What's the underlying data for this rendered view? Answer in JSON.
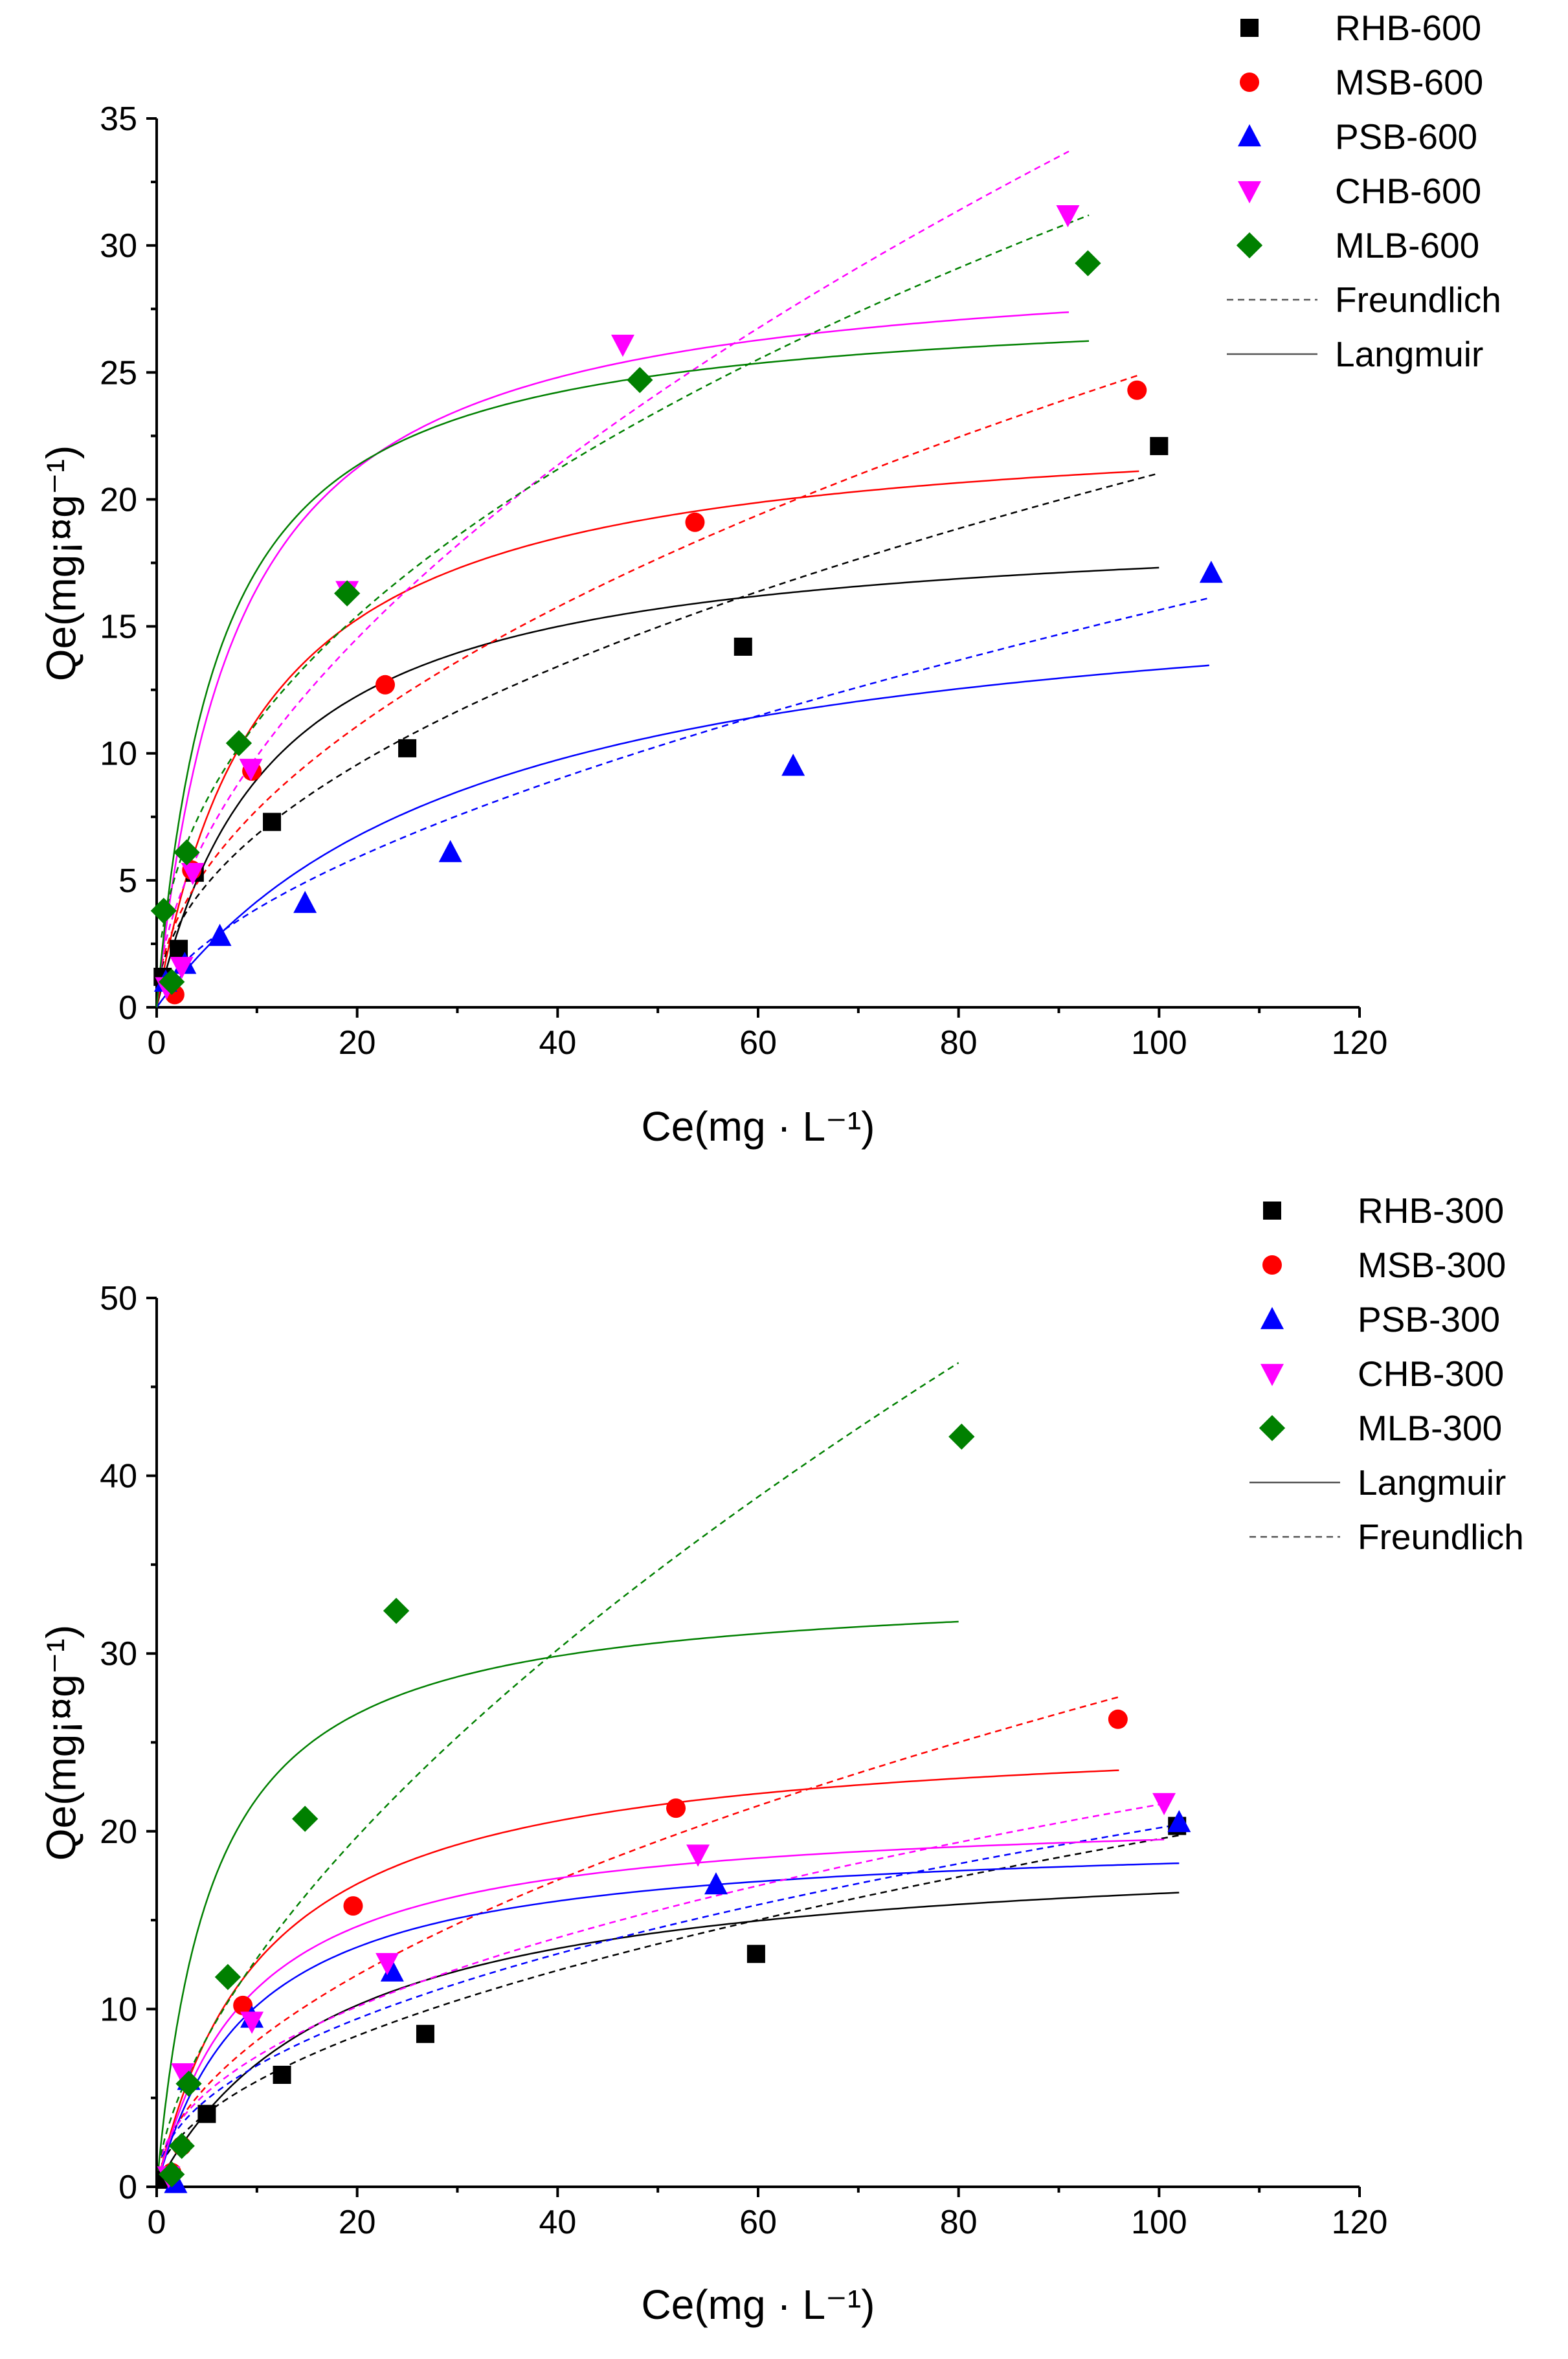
{
  "chart_data": [
    {
      "type": "scatter",
      "title": "",
      "xlabel": "Ce(mg · L⁻¹)",
      "ylabel": "Qe(mg¡¤g⁻¹)",
      "xlim": [
        0,
        120
      ],
      "ylim": [
        0,
        35
      ],
      "xticks": [
        "0",
        "20",
        "40",
        "60",
        "80",
        "100",
        "120"
      ],
      "yticks": [
        "0",
        "5",
        "10",
        "15",
        "20",
        "25",
        "30",
        "35"
      ],
      "legend_position": "top-right",
      "legend": [
        "RHB-600",
        "MSB-600",
        "PSB-600",
        "CHB-600",
        "MLB-600",
        "Freundlich",
        "Langmuir"
      ],
      "series": [
        {
          "name": "RHB-600",
          "marker": "square",
          "color": "#000000",
          "x": [
            0.6,
            2.2,
            3.8,
            11.5,
            25.0,
            58.5,
            100.0
          ],
          "y": [
            1.2,
            2.3,
            5.3,
            7.3,
            10.2,
            14.2,
            22.1
          ],
          "langmuir": {
            "qm": 19.3,
            "kl": 0.087,
            "xmax": 100
          },
          "freundlich": {
            "kf": 2.2,
            "n": 2.04,
            "xmax": 100
          }
        },
        {
          "name": "MSB-600",
          "marker": "circle",
          "color": "#ff0000",
          "x": [
            1.8,
            3.5,
            9.5,
            22.8,
            53.7,
            97.8
          ],
          "y": [
            0.5,
            5.4,
            9.3,
            12.7,
            19.1,
            24.3
          ],
          "langmuir": {
            "qm": 23.4,
            "kl": 0.094,
            "xmax": 98
          },
          "freundlich": {
            "kf": 2.4,
            "n": 1.96,
            "xmax": 98
          }
        },
        {
          "name": "PSB-600",
          "marker": "triangle-up",
          "color": "#0000ff",
          "x": [
            0.9,
            2.8,
            6.3,
            14.8,
            29.3,
            63.5,
            105.2
          ],
          "y": [
            1.0,
            1.7,
            2.8,
            4.1,
            6.1,
            9.5,
            17.1
          ],
          "langmuir": {
            "qm": 17.6,
            "kl": 0.031,
            "xmax": 105
          },
          "freundlich": {
            "kf": 0.96,
            "n": 1.65,
            "xmax": 105
          }
        },
        {
          "name": "CHB-600",
          "marker": "triangle-down",
          "color": "#ff00ff",
          "x": [
            1.0,
            2.5,
            3.6,
            9.4,
            19.0,
            46.5,
            90.9
          ],
          "y": [
            0.8,
            1.6,
            5.3,
            9.4,
            16.4,
            26.1,
            31.2
          ],
          "langmuir": {
            "qm": 29.8,
            "kl": 0.124,
            "xmax": 91
          },
          "freundlich": {
            "kf": 2.75,
            "n": 1.8,
            "xmax": 91
          }
        },
        {
          "name": "MLB-600",
          "marker": "diamond",
          "color": "#008000",
          "x": [
            0.7,
            1.5,
            3.0,
            8.2,
            19.0,
            48.2,
            92.9
          ],
          "y": [
            3.8,
            1.0,
            6.1,
            10.4,
            16.3,
            24.7,
            29.3
          ],
          "langmuir": {
            "qm": 28.0,
            "kl": 0.16,
            "xmax": 93
          },
          "freundlich": {
            "kf": 3.9,
            "n": 2.18,
            "xmax": 93
          }
        }
      ]
    },
    {
      "type": "scatter",
      "title": "",
      "xlabel": "Ce(mg · L⁻¹)",
      "ylabel": "Qe(mg¡¤g⁻¹)",
      "xlim": [
        0,
        120
      ],
      "ylim": [
        0,
        50
      ],
      "xticks": [
        "0",
        "20",
        "40",
        "60",
        "80",
        "100",
        "120"
      ],
      "yticks": [
        "0",
        "10",
        "20",
        "30",
        "40",
        "50"
      ],
      "legend_position": "top-right",
      "legend": [
        "RHB-300",
        "MSB-300",
        "PSB-300",
        "CHB-300",
        "MLB-300",
        "Langmuir",
        "Freundlich"
      ],
      "series": [
        {
          "name": "RHB-300",
          "marker": "square",
          "color": "#000000",
          "x": [
            0.8,
            5.0,
            12.5,
            26.8,
            59.8,
            101.8
          ],
          "y": [
            0.4,
            4.1,
            6.3,
            8.6,
            13.1,
            20.3
          ],
          "langmuir": {
            "qm": 19.5,
            "kl": 0.055,
            "xmax": 102
          },
          "freundlich": {
            "kf": 1.8,
            "n": 1.93,
            "xmax": 102
          }
        },
        {
          "name": "MSB-300",
          "marker": "circle",
          "color": "#ff0000",
          "x": [
            1.5,
            2.5,
            8.6,
            19.6,
            51.8,
            95.9
          ],
          "y": [
            0.8,
            2.3,
            10.2,
            15.8,
            21.3,
            26.3
          ],
          "langmuir": {
            "qm": 26.0,
            "kl": 0.095,
            "xmax": 96
          },
          "freundlich": {
            "kf": 2.4,
            "n": 1.87,
            "xmax": 96
          }
        },
        {
          "name": "PSB-300",
          "marker": "triangle-up",
          "color": "#0000ff",
          "x": [
            1.9,
            3.2,
            9.5,
            23.5,
            55.8,
            102.0
          ],
          "y": [
            0.2,
            6.0,
            9.5,
            12.1,
            17.0,
            20.5
          ],
          "langmuir": {
            "qm": 19.9,
            "kl": 0.105,
            "xmax": 102
          },
          "freundlich": {
            "kf": 2.3,
            "n": 2.12,
            "xmax": 102
          }
        },
        {
          "name": "CHB-300",
          "marker": "triangle-down",
          "color": "#ff00ff",
          "x": [
            1.2,
            2.6,
            9.5,
            23.0,
            54.0,
            100.5
          ],
          "y": [
            0.6,
            6.4,
            9.3,
            12.6,
            18.7,
            21.6
          ],
          "langmuir": {
            "qm": 21.3,
            "kl": 0.11,
            "xmax": 100.5
          },
          "freundlich": {
            "kf": 2.5,
            "n": 2.14,
            "xmax": 100.5
          }
        },
        {
          "name": "MLB-300",
          "marker": "diamond",
          "color": "#008000",
          "x": [
            1.5,
            2.5,
            3.2,
            7.1,
            14.8,
            23.9,
            80.3
          ],
          "y": [
            0.7,
            2.3,
            5.8,
            11.8,
            20.7,
            32.4,
            42.2
          ],
          "langmuir": {
            "qm": 34.0,
            "kl": 0.18,
            "xmax": 80
          }
        },
        {
          "name": "MLB-300 Freundlich",
          "marker": "none",
          "color": "#008000",
          "x": [],
          "y": [],
          "freundlich": {
            "kf": 3.1,
            "n": 1.62,
            "xmax": 80
          }
        }
      ]
    }
  ]
}
